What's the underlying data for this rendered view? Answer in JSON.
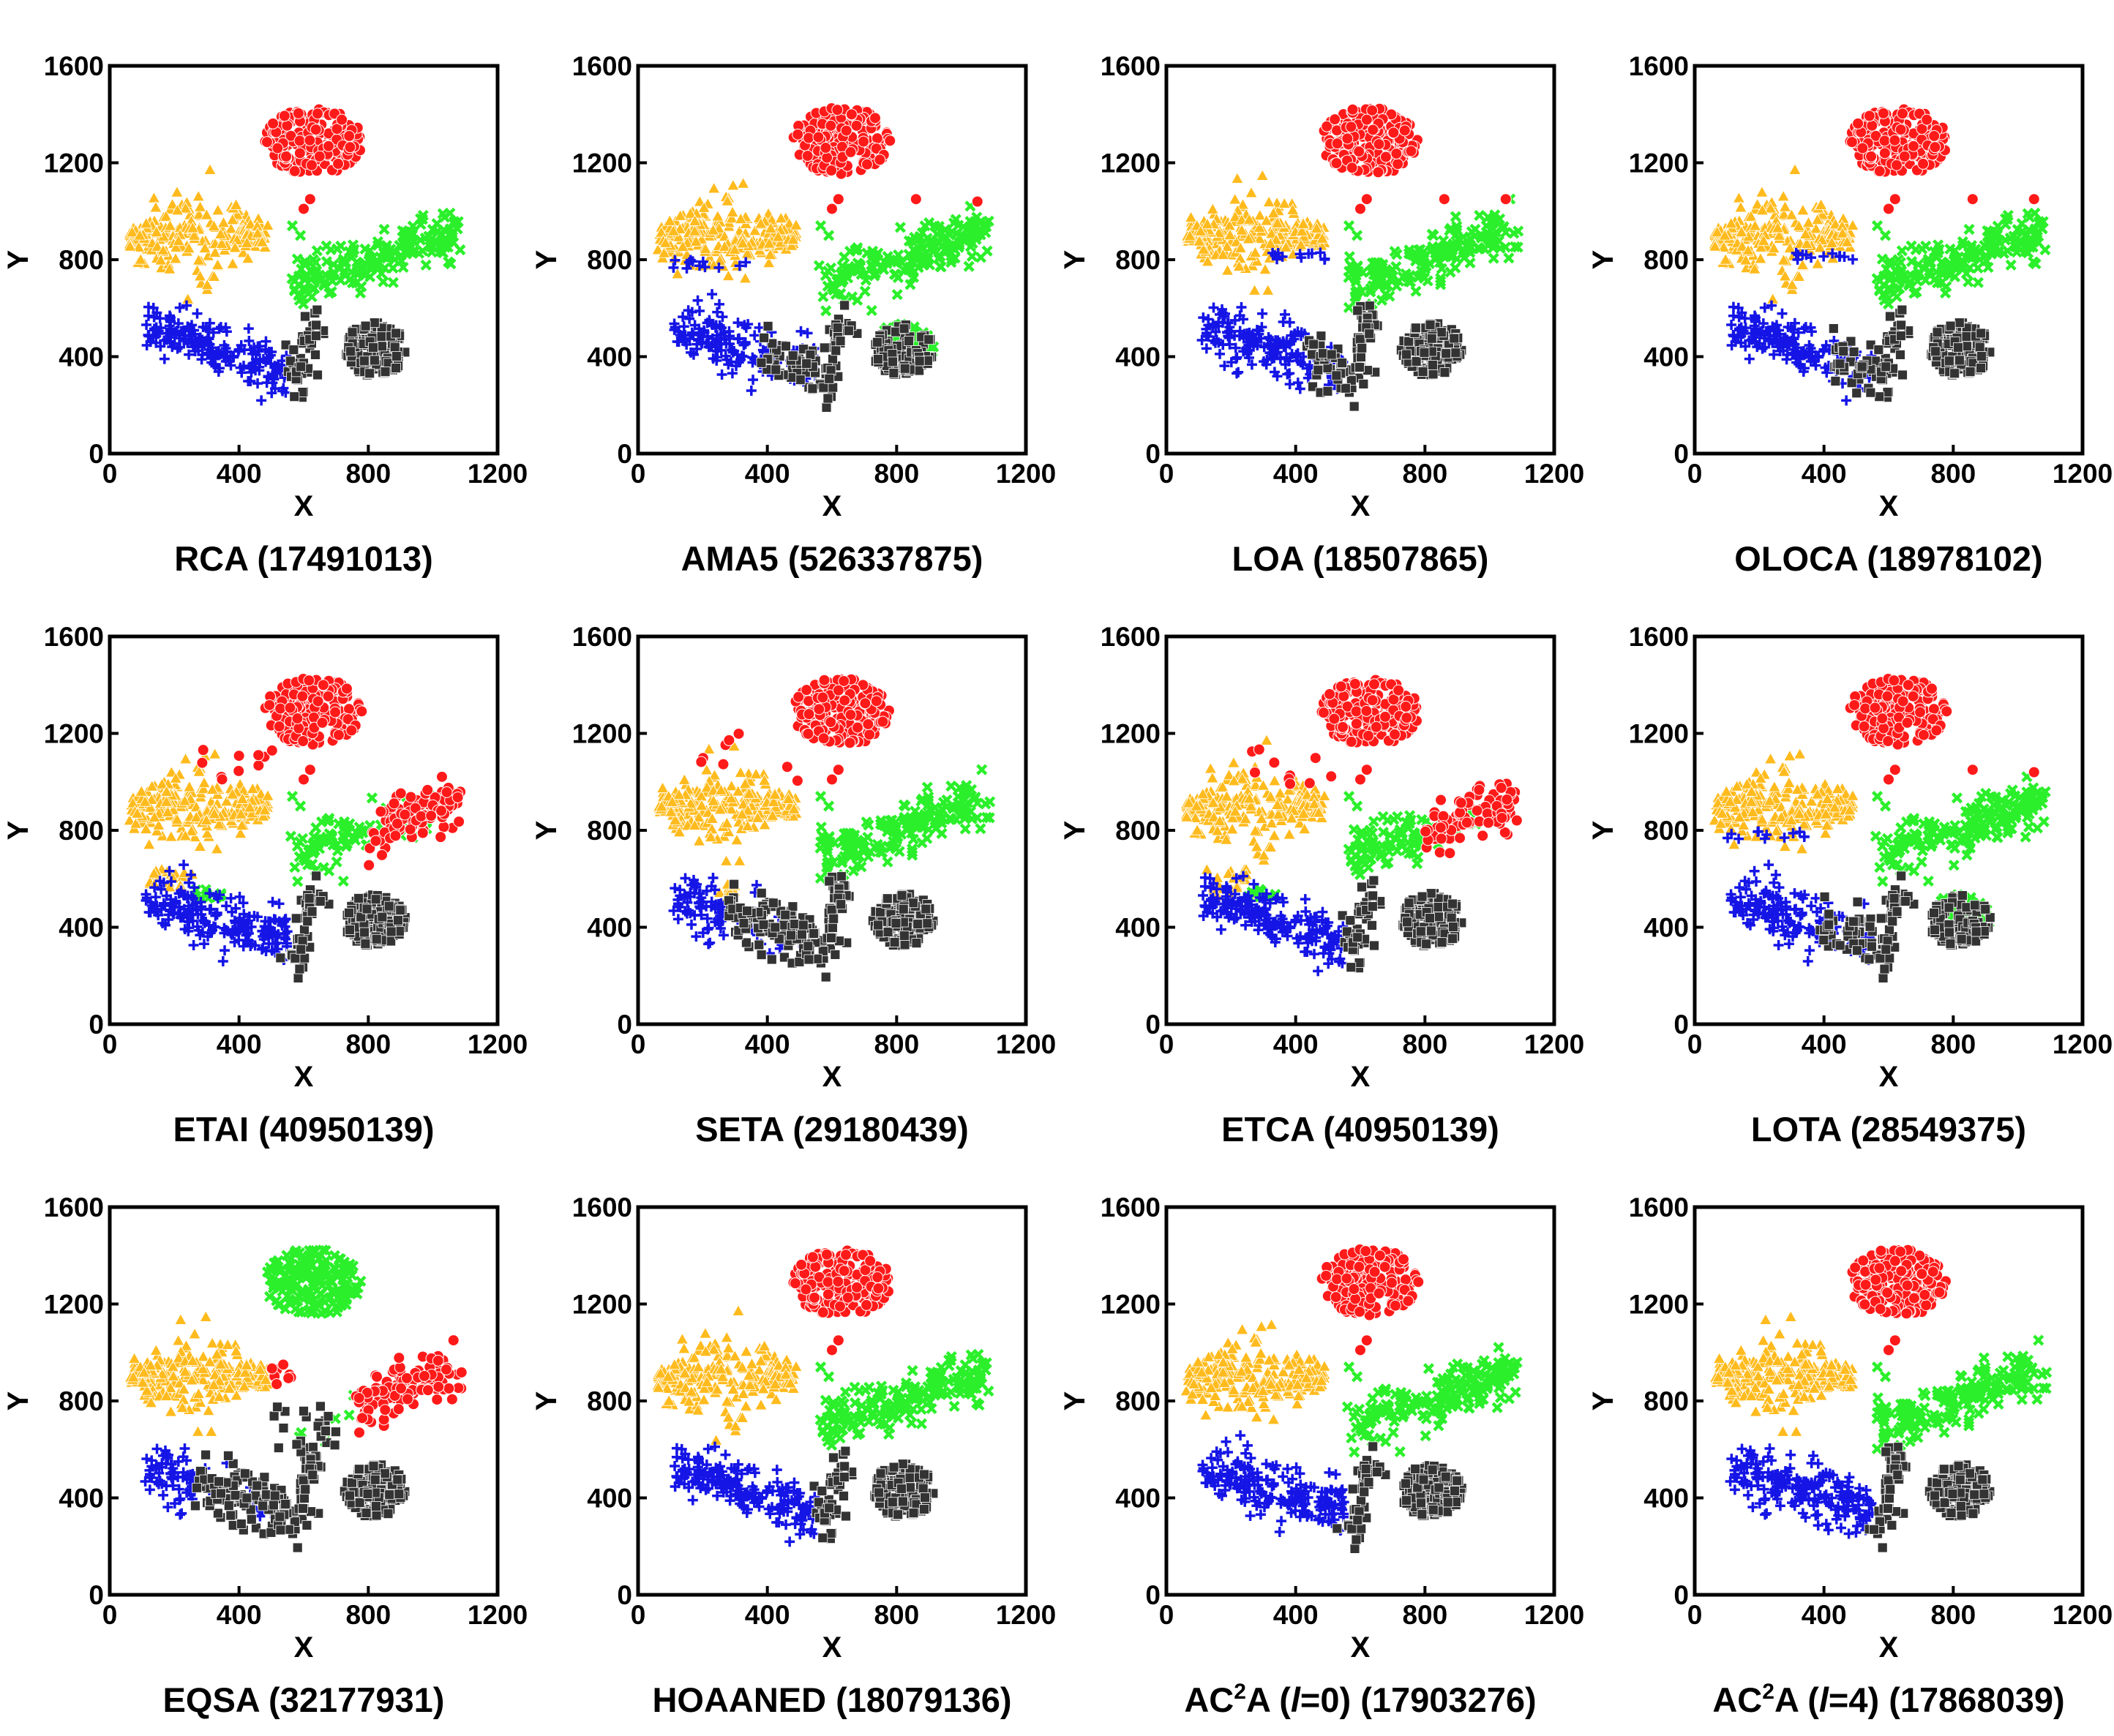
{
  "colors": {
    "red": "#ff1a1a",
    "orange": "#ffbb1e",
    "green": "#2bef2b",
    "blue": "#1515e6",
    "black": "#333333"
  },
  "marker_shapes": {
    "red": "circle",
    "orange": "triangle",
    "green": "x",
    "blue": "plus",
    "black": "square"
  },
  "chart_data": [
    {
      "type": "scatter",
      "caption": "RCA (17491013)",
      "xlabel": "X",
      "ylabel": "Y",
      "xlim": [
        0,
        1200
      ],
      "ylim": [
        0,
        1600
      ],
      "xticks": [
        "0",
        "400",
        "800",
        "1200"
      ],
      "yticks": [
        "0",
        "400",
        "800",
        "1200",
        "1600"
      ],
      "variant": "base"
    },
    {
      "type": "scatter",
      "caption": "AMA5 (526337875)",
      "xlabel": "X",
      "ylabel": "Y",
      "xlim": [
        0,
        1200
      ],
      "ylim": [
        0,
        1600
      ],
      "xticks": [
        "0",
        "400",
        "800",
        "1200"
      ],
      "yticks": [
        "0",
        "400",
        "800",
        "1200",
        "1600"
      ],
      "variant": "ama5"
    },
    {
      "type": "scatter",
      "caption": "LOA (18507865)",
      "xlabel": "X",
      "ylabel": "Y",
      "xlim": [
        0,
        1200
      ],
      "ylim": [
        0,
        1600
      ],
      "xticks": [
        "0",
        "400",
        "800",
        "1200"
      ],
      "yticks": [
        "0",
        "400",
        "800",
        "1200",
        "1600"
      ],
      "variant": "loa"
    },
    {
      "type": "scatter",
      "caption": "OLOCA (18978102)",
      "xlabel": "X",
      "ylabel": "Y",
      "xlim": [
        0,
        1200
      ],
      "ylim": [
        0,
        1600
      ],
      "xticks": [
        "0",
        "400",
        "800",
        "1200"
      ],
      "yticks": [
        "0",
        "400",
        "800",
        "1200",
        "1600"
      ],
      "variant": "loa"
    },
    {
      "type": "scatter",
      "caption": "ETAI (40950139)",
      "xlabel": "X",
      "ylabel": "Y",
      "xlim": [
        0,
        1200
      ],
      "ylim": [
        0,
        1600
      ],
      "xticks": [
        "0",
        "400",
        "800",
        "1200"
      ],
      "yticks": [
        "0",
        "400",
        "800",
        "1200",
        "1600"
      ],
      "variant": "etai"
    },
    {
      "type": "scatter",
      "caption": "SETA (29180439)",
      "xlabel": "X",
      "ylabel": "Y",
      "xlim": [
        0,
        1200
      ],
      "ylim": [
        0,
        1600
      ],
      "xticks": [
        "0",
        "400",
        "800",
        "1200"
      ],
      "yticks": [
        "0",
        "400",
        "800",
        "1200",
        "1600"
      ],
      "variant": "seta"
    },
    {
      "type": "scatter",
      "caption": "ETCA (40950139)",
      "xlabel": "X",
      "ylabel": "Y",
      "xlim": [
        0,
        1200
      ],
      "ylim": [
        0,
        1600
      ],
      "xticks": [
        "0",
        "400",
        "800",
        "1200"
      ],
      "yticks": [
        "0",
        "400",
        "800",
        "1200",
        "1600"
      ],
      "variant": "etai"
    },
    {
      "type": "scatter",
      "caption": "LOTA (28549375)",
      "xlabel": "X",
      "ylabel": "Y",
      "xlim": [
        0,
        1200
      ],
      "ylim": [
        0,
        1600
      ],
      "xticks": [
        "0",
        "400",
        "800",
        "1200"
      ],
      "yticks": [
        "0",
        "400",
        "800",
        "1200",
        "1600"
      ],
      "variant": "lota"
    },
    {
      "type": "scatter",
      "caption": "EQSA (32177931)",
      "xlabel": "X",
      "ylabel": "Y",
      "xlim": [
        0,
        1200
      ],
      "ylim": [
        0,
        1600
      ],
      "xticks": [
        "0",
        "400",
        "800",
        "1200"
      ],
      "yticks": [
        "0",
        "400",
        "800",
        "1200",
        "1600"
      ],
      "variant": "eqsa"
    },
    {
      "type": "scatter",
      "caption": "HOAANED (18079136)",
      "xlabel": "X",
      "ylabel": "Y",
      "xlim": [
        0,
        1200
      ],
      "ylim": [
        0,
        1600
      ],
      "xticks": [
        "0",
        "400",
        "800",
        "1200"
      ],
      "yticks": [
        "0",
        "400",
        "800",
        "1200",
        "1600"
      ],
      "variant": "base"
    },
    {
      "type": "scatter",
      "caption_parts": [
        "AC",
        "2",
        "A (",
        "l",
        "=0) (17903276)"
      ],
      "xlabel": "X",
      "ylabel": "Y",
      "xlim": [
        0,
        1200
      ],
      "ylim": [
        0,
        1600
      ],
      "xticks": [
        "0",
        "400",
        "800",
        "1200"
      ],
      "yticks": [
        "0",
        "400",
        "800",
        "1200",
        "1600"
      ],
      "variant": "base"
    },
    {
      "type": "scatter",
      "caption_parts": [
        "AC",
        "2",
        "A (",
        "l",
        "=4) (17868039)"
      ],
      "xlabel": "X",
      "ylabel": "Y",
      "xlim": [
        0,
        1200
      ],
      "ylim": [
        0,
        1600
      ],
      "xticks": [
        "0",
        "400",
        "800",
        "1200"
      ],
      "yticks": [
        "0",
        "400",
        "800",
        "1200",
        "1600"
      ],
      "variant": "base"
    }
  ]
}
